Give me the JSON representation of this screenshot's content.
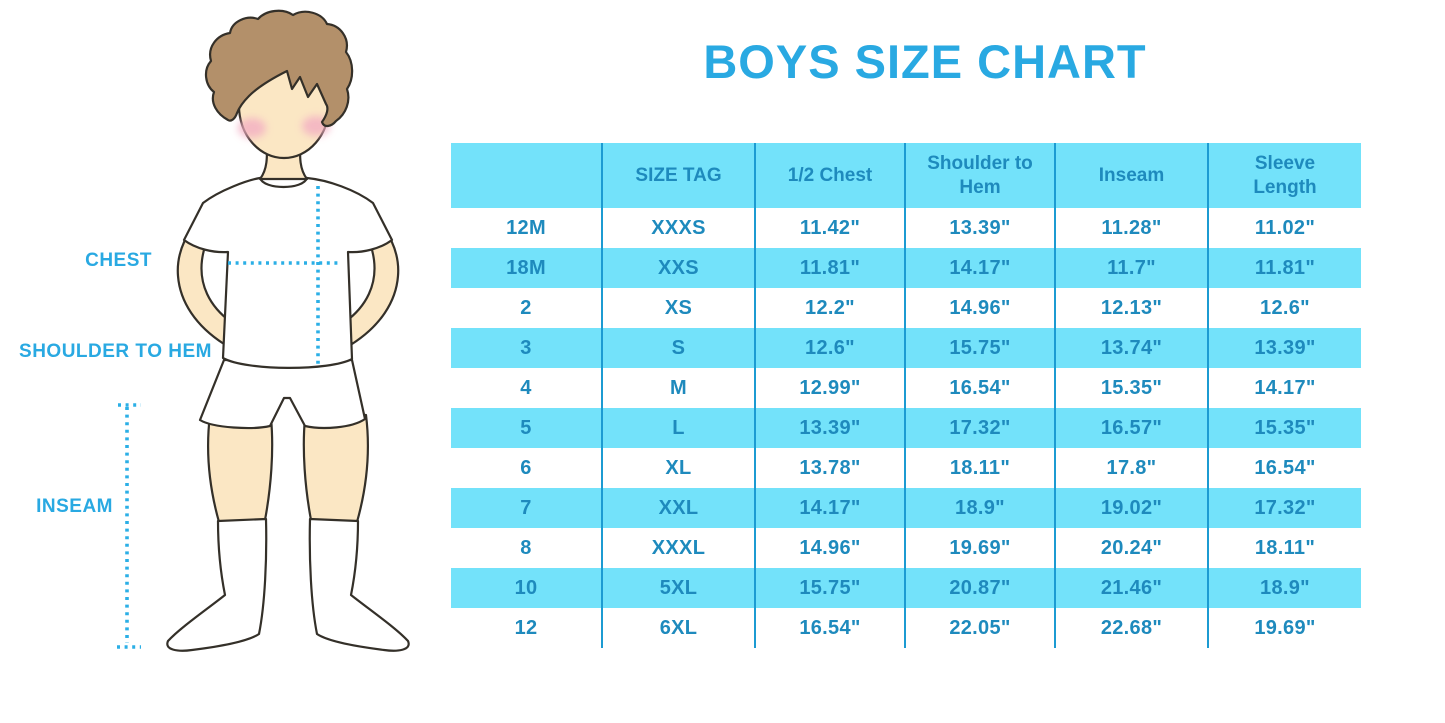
{
  "page_title": "BOYS SIZE CHART",
  "figure": {
    "description": "boy-with-measurement-lines-illustration",
    "labels": {
      "chest": "CHEST",
      "shoulder_to_hem": "SHOULDER TO HEM",
      "inseam": "INSEAM"
    }
  },
  "colors": {
    "title_blue": "#29A9E2",
    "label_blue": "#29A9E2",
    "dotted_line_blue": "#2BAFE6",
    "row_cyan": "#73E2FA",
    "divider_blue": "#1C9BD2",
    "table_text_blue": "#1E8ABD",
    "skin": "#FBE7C4",
    "hair": "#B3906A",
    "outline": "#343029",
    "cheek_pink": "#F3AEC3",
    "garment_white": "#FFFFFF"
  },
  "chart_data": {
    "type": "table",
    "title": "BOYS SIZE CHART",
    "columns": [
      "",
      "SIZE TAG",
      "1/2 Chest",
      "Shoulder to Hem",
      "Inseam",
      "Sleeve Length"
    ],
    "rows": [
      [
        "12M",
        "XXXS",
        "11.42\"",
        "13.39\"",
        "11.28\"",
        "11.02\""
      ],
      [
        "18M",
        "XXS",
        "11.81\"",
        "14.17\"",
        "11.7\"",
        "11.81\""
      ],
      [
        "2",
        "XS",
        "12.2\"",
        "14.96\"",
        "12.13\"",
        "12.6\""
      ],
      [
        "3",
        "S",
        "12.6\"",
        "15.75\"",
        "13.74\"",
        "13.39\""
      ],
      [
        "4",
        "M",
        "12.99\"",
        "16.54\"",
        "15.35\"",
        "14.17\""
      ],
      [
        "5",
        "L",
        "13.39\"",
        "17.32\"",
        "16.57\"",
        "15.35\""
      ],
      [
        "6",
        "XL",
        "13.78\"",
        "18.11\"",
        "17.8\"",
        "16.54\""
      ],
      [
        "7",
        "XXL",
        "14.17\"",
        "18.9\"",
        "19.02\"",
        "17.32\""
      ],
      [
        "8",
        "XXXL",
        "14.96\"",
        "19.69\"",
        "20.24\"",
        "18.11\""
      ],
      [
        "10",
        "5XL",
        "15.75\"",
        "20.87\"",
        "21.46\"",
        "18.9\""
      ],
      [
        "12",
        "6XL",
        "16.54\"",
        "22.05\"",
        "22.68\"",
        "19.69\""
      ]
    ]
  }
}
